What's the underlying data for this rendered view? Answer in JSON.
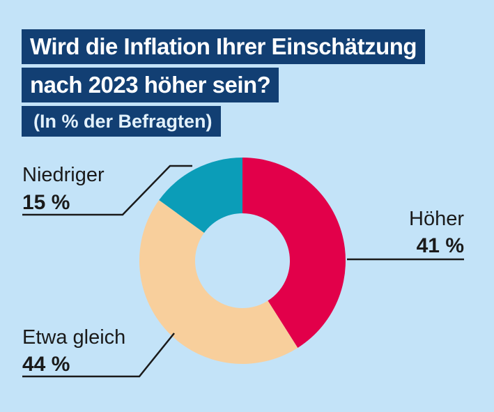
{
  "title": [
    "Wird die Inflation Ihrer Einschätzung",
    "nach 2023 höher sein?"
  ],
  "subtitle": "(In % der Befragten)",
  "colors": {
    "background": "#c3e3f8",
    "title_box": "#123f73",
    "hoeher": "#e2004a",
    "etwa_gleich": "#f8cf9c",
    "niedriger": "#0b9db8"
  },
  "chart_data": {
    "type": "pie",
    "variant": "donut",
    "title": "Wird die Inflation Ihrer Einschätzung nach 2023 höher sein?",
    "subtitle": "(In % der Befragten)",
    "slices": [
      {
        "name": "Höher",
        "value": 41,
        "value_label": "41 %",
        "color": "#e2004a"
      },
      {
        "name": "Etwa gleich",
        "value": 44,
        "value_label": "44 %",
        "color": "#f8cf9c"
      },
      {
        "name": "Niedriger",
        "value": 15,
        "value_label": "15 %",
        "color": "#0b9db8"
      }
    ]
  }
}
